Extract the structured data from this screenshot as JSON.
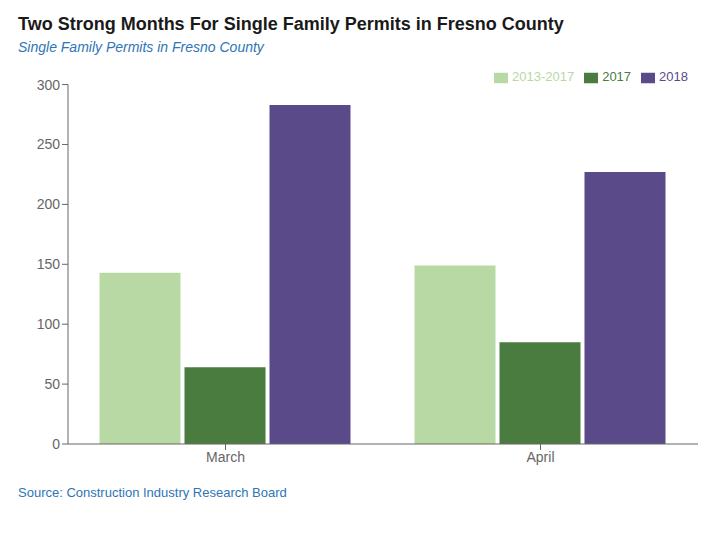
{
  "chart_data": {
    "type": "bar",
    "title": "Two Strong Months For Single Family Permits in Fresno County",
    "subtitle": "Single Family Permits in Fresno County",
    "source": "Source: Construction Industry Research Board",
    "categories": [
      "March",
      "April"
    ],
    "series": [
      {
        "name": "2013-2017",
        "color": "#b8d9a4",
        "values": [
          143,
          149
        ]
      },
      {
        "name": "2017",
        "color": "#4a7c3f",
        "values": [
          64,
          85
        ]
      },
      {
        "name": "2018",
        "color": "#5b4a8a",
        "values": [
          283,
          227
        ]
      }
    ],
    "ylim": [
      0,
      300
    ],
    "yticks": [
      0,
      50,
      100,
      150,
      200,
      250,
      300
    ],
    "grid": false,
    "legend": "upper right"
  }
}
